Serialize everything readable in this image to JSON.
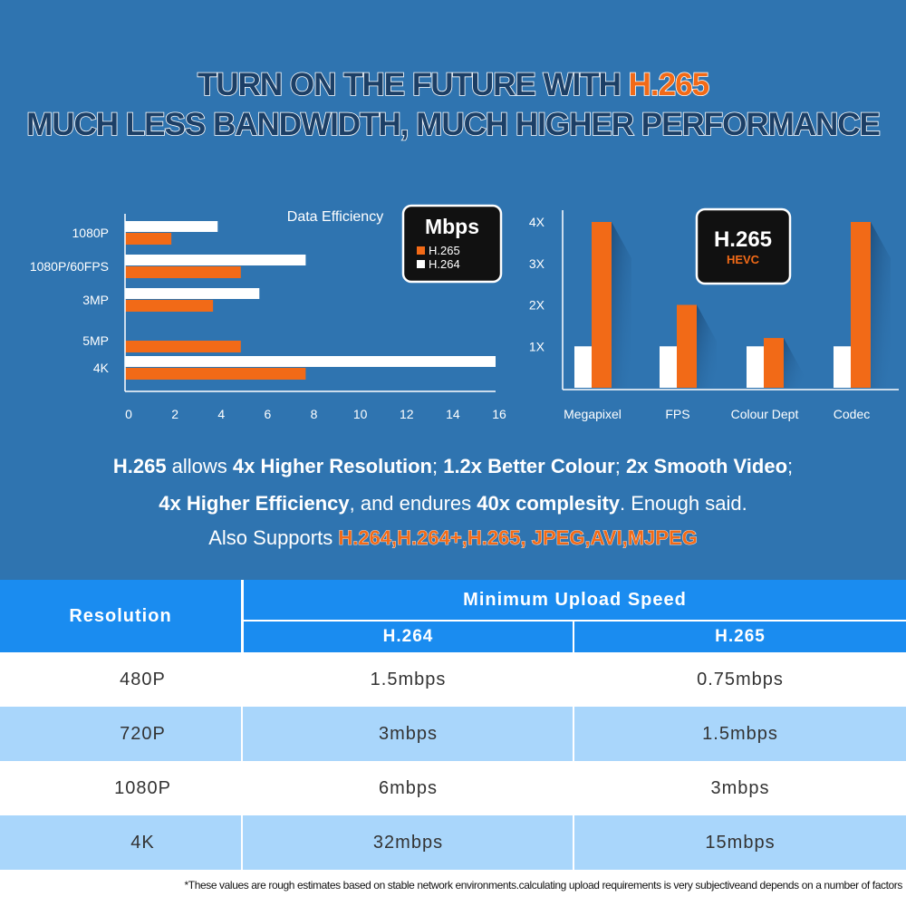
{
  "headline": {
    "line1_prefix": "TURN ON THE FUTURE WITH ",
    "line1_highlight": "H.265",
    "line2": "MUCH LESS BANDWIDTH, MUCH HIGHER PERFORMANCE"
  },
  "colors": {
    "h265": "#f26a17",
    "h264": "#ffffff",
    "background": "#2f74b0",
    "table_header": "#1a8cf0",
    "row_alt": "#a9d6fb"
  },
  "chart_data": [
    {
      "type": "bar",
      "orientation": "horizontal",
      "title": "Data Efficiency",
      "legend_title": "Mbps",
      "categories": [
        "1080P",
        "1080P/60FPS",
        "3MP",
        "5MP",
        "4K"
      ],
      "series": [
        {
          "name": "H.264",
          "values": [
            4,
            7.8,
            5.8,
            0,
            16
          ]
        },
        {
          "name": "H.265",
          "values": [
            2,
            5,
            3.8,
            5,
            7.8
          ]
        }
      ],
      "xlim": [
        0,
        16
      ],
      "xticks": [
        "0",
        "2",
        "4",
        "6",
        "8",
        "10",
        "12",
        "14",
        "16"
      ]
    },
    {
      "type": "bar",
      "badge_title": "H.265",
      "badge_subtitle": "HEVC",
      "categories": [
        "Megapixel",
        "FPS",
        "Colour Dept",
        "Codec"
      ],
      "series": [
        {
          "values": [
            1,
            1,
            1,
            1
          ]
        },
        {
          "values": [
            4,
            2,
            1.2,
            4
          ]
        }
      ],
      "ylim": [
        0,
        4.3
      ],
      "yticks": [
        "1X",
        "2X",
        "3X",
        "4X"
      ]
    }
  ],
  "summary": {
    "line1": [
      {
        "text": "H.265",
        "bold": true
      },
      {
        "text": " allows ",
        "bold": false
      },
      {
        "text": "4x Higher Resolution",
        "bold": true
      },
      {
        "text": "; ",
        "bold": false
      },
      {
        "text": "1.2x Better Colour",
        "bold": true
      },
      {
        "text": "; ",
        "bold": false
      },
      {
        "text": "2x Smooth Video",
        "bold": true
      },
      {
        "text": ";",
        "bold": false
      }
    ],
    "line2": [
      {
        "text": "4x Higher Efficiency",
        "bold": true
      },
      {
        "text": ", and endures ",
        "bold": false
      },
      {
        "text": "40x complesity",
        "bold": true
      },
      {
        "text": ". Enough said.",
        "bold": false
      }
    ],
    "line3_prefix": "Also Supports ",
    "line3_highlight": "H.264,H.264+,H.265, JPEG,AVI,MJPEG"
  },
  "table": {
    "header_resolution": "Resolution",
    "header_group": "Minimum Upload Speed",
    "header_h264": "H.264",
    "header_h265": "H.265",
    "rows": [
      [
        "480P",
        "1.5mbps",
        "0.75mbps"
      ],
      [
        "720P",
        "3mbps",
        "1.5mbps"
      ],
      [
        "1080P",
        "6mbps",
        "3mbps"
      ],
      [
        "4K",
        "32mbps",
        "15mbps"
      ]
    ]
  },
  "footnote": "*These values are rough estimates based on stable network environments.calculating upload requirements is very subjectiveand depends on a number of factors"
}
